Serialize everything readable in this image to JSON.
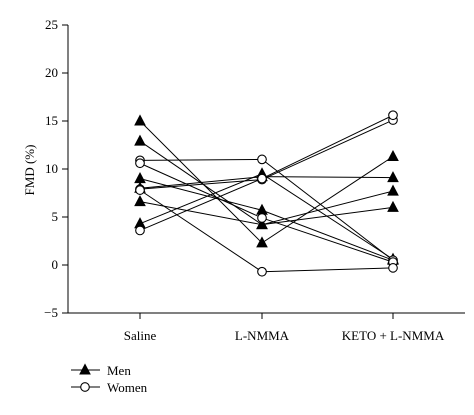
{
  "chart_data": {
    "type": "line",
    "ylabel": "FMD (%)",
    "xlabel": "",
    "categories": [
      "Saline",
      "L-NMMA",
      "KETO + L-NMMA"
    ],
    "ylim": [
      -5,
      25
    ],
    "yticks": [
      -5,
      0,
      5,
      10,
      15,
      20,
      25
    ],
    "legend": {
      "placement": "bottom-left",
      "entries": [
        {
          "label": "Men",
          "marker": "filled-triangle"
        },
        {
          "label": "Women",
          "marker": "open-circle"
        }
      ]
    },
    "series": [
      {
        "group": "Men",
        "values": [
          15.0,
          2.3,
          11.3
        ]
      },
      {
        "group": "Men",
        "values": [
          12.9,
          4.2,
          7.7
        ]
      },
      {
        "group": "Men",
        "values": [
          9.0,
          5.7,
          0.5
        ]
      },
      {
        "group": "Men",
        "values": [
          8.0,
          9.2,
          9.1
        ]
      },
      {
        "group": "Men",
        "values": [
          6.6,
          4.2,
          6.0
        ]
      },
      {
        "group": "Men",
        "values": [
          4.3,
          9.5,
          0.6
        ]
      },
      {
        "group": "Women",
        "values": [
          10.9,
          11.0,
          0.5
        ]
      },
      {
        "group": "Women",
        "values": [
          10.6,
          4.9,
          0.3
        ]
      },
      {
        "group": "Women",
        "values": [
          7.9,
          8.9,
          15.1
        ]
      },
      {
        "group": "Women",
        "values": [
          3.6,
          9.0,
          15.6
        ]
      },
      {
        "group": "Women",
        "values": [
          7.8,
          -0.7,
          -0.3
        ]
      }
    ]
  }
}
